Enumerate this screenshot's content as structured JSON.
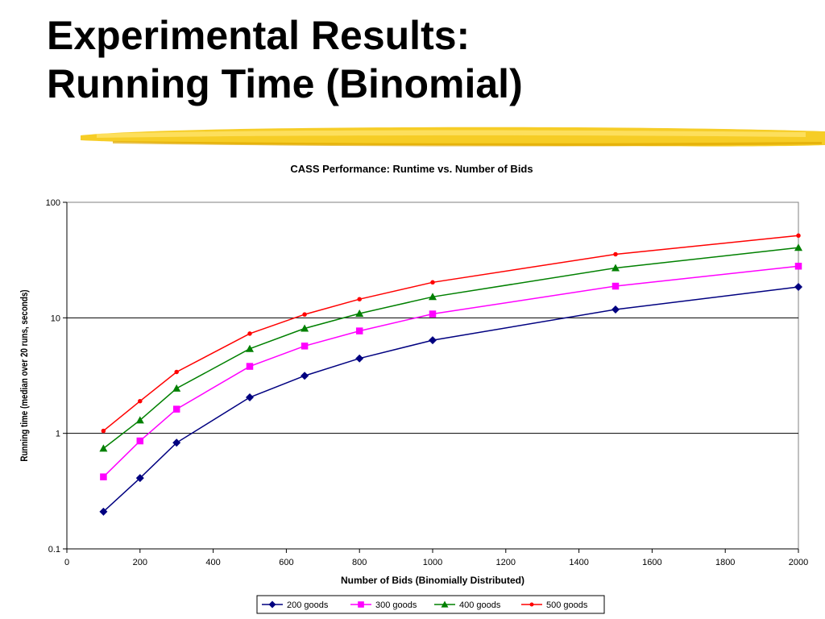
{
  "slide": {
    "title_line1": "Experimental Results:",
    "title_line2": "Running Time (Binomial)"
  },
  "colors": {
    "accent_underline": "#f5c400"
  },
  "chart_data": {
    "type": "line",
    "title": "CASS Performance:  Runtime vs. Number of Bids",
    "xlabel": "Number of Bids (Binomially Distributed)",
    "ylabel": "Running time (median over 20 runs, seconds)",
    "xlim": [
      0,
      2000
    ],
    "ylim": [
      0.1,
      100
    ],
    "yscale": "log",
    "x_ticks": [
      "0",
      "200",
      "400",
      "600",
      "800",
      "1000",
      "1200",
      "1400",
      "1600",
      "1800",
      "2000"
    ],
    "y_ticks": [
      "0.1",
      "1",
      "10",
      "100"
    ],
    "grid": "horizontal",
    "legend_position": "bottom",
    "x": [
      100,
      200,
      300,
      500,
      650,
      800,
      1000,
      1500,
      2000
    ],
    "series": [
      {
        "name": "200 goods",
        "color": "#000080",
        "marker": "diamond",
        "values": [
          0.21,
          0.41,
          0.83,
          2.05,
          3.15,
          4.45,
          6.4,
          11.8,
          18.5
        ]
      },
      {
        "name": "300 goods",
        "color": "#ff00ff",
        "marker": "square",
        "values": [
          0.42,
          0.86,
          1.62,
          3.8,
          5.7,
          7.7,
          10.8,
          18.8,
          28
        ]
      },
      {
        "name": "400 goods",
        "color": "#008000",
        "marker": "triangle",
        "values": [
          0.74,
          1.3,
          2.45,
          5.4,
          8.1,
          10.9,
          15.2,
          27,
          40.5
        ]
      },
      {
        "name": "500 goods",
        "color": "#ff0000",
        "marker": "circle",
        "values": [
          1.05,
          1.9,
          3.4,
          7.3,
          10.7,
          14.5,
          20.3,
          35.5,
          51.5
        ]
      }
    ]
  }
}
